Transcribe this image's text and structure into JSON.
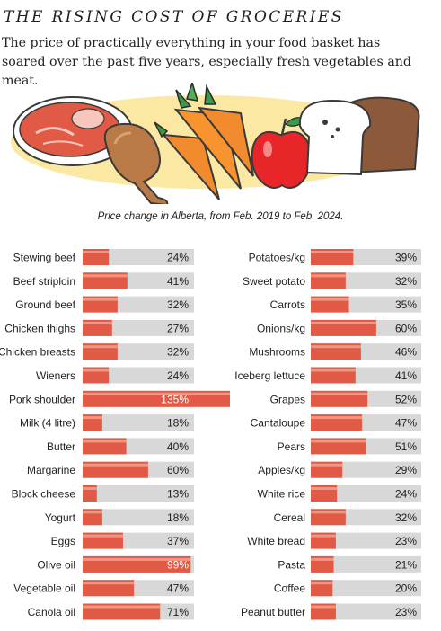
{
  "header": {
    "title": "THE RISING COST OF GROCERIES",
    "subtitle": "The price of practically everything in your food basket has soared over the past five years, especially fresh vegetables and meat."
  },
  "illustration": {
    "icons": [
      "steak-icon",
      "chicken-drumstick-icon",
      "carrots-icon",
      "apple-icon",
      "bread-loaf-icon"
    ]
  },
  "colors": {
    "bar_fill": "#e05a45",
    "bar_highlight": "#f4a594",
    "track": "#d8d8d8",
    "backdrop": "#fbe8a2"
  },
  "chart_data": [
    {
      "type": "bar",
      "orientation": "horizontal",
      "title": "Price change in Alberta, from Feb. 2019 to Feb. 2024.",
      "unit": "%",
      "categories": [
        "Stewing beef",
        "Beef striploin",
        "Ground beef",
        "Chicken thighs",
        "Chicken breasts",
        "Wieners",
        "Pork shoulder",
        "Milk (4 litre)",
        "Butter",
        "Margarine",
        "Block cheese",
        "Yogurt",
        "Eggs",
        "Olive oil",
        "Vegetable oil",
        "Canola oil"
      ],
      "values": [
        24,
        41,
        32,
        27,
        32,
        24,
        135,
        18,
        40,
        60,
        13,
        18,
        37,
        99,
        47,
        71
      ],
      "labels": [
        "24%",
        "41%",
        "32%",
        "27%",
        "32%",
        "24%",
        "135%",
        "18%",
        "40%",
        "60%",
        "13%",
        "18%",
        "37%",
        "99%",
        "47%",
        "71%"
      ],
      "xlim": [
        0,
        135
      ]
    },
    {
      "type": "bar",
      "orientation": "horizontal",
      "unit": "%",
      "categories": [
        "Potatoes/kg",
        "Sweet potato",
        "Carrots",
        "Onions/kg",
        "Mushrooms",
        "Iceberg lettuce",
        "Grapes",
        "Cantaloupe",
        "Pears",
        "Apples/kg",
        "White rice",
        "Cereal",
        "White bread",
        "Pasta",
        "Coffee",
        "Peanut butter"
      ],
      "values": [
        39,
        32,
        35,
        60,
        46,
        41,
        52,
        47,
        51,
        29,
        24,
        32,
        23,
        21,
        20,
        23
      ],
      "labels": [
        "39%",
        "32%",
        "35%",
        "60%",
        "46%",
        "41%",
        "52%",
        "47%",
        "51%",
        "29%",
        "24%",
        "32%",
        "23%",
        "21%",
        "20%",
        "23%"
      ],
      "xlim": [
        0,
        135
      ]
    }
  ]
}
